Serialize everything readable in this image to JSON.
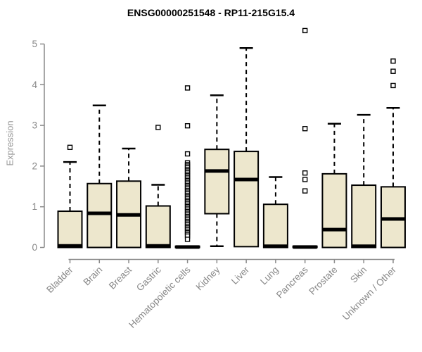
{
  "chart_data": {
    "type": "boxplot",
    "title": "ENSG00000251548 - RP11-215G15.4",
    "ylabel": "Expression",
    "xlabel": "",
    "ylim": [
      0,
      5.4
    ],
    "yticks": [
      0,
      1,
      2,
      3,
      4,
      5
    ],
    "grid": false,
    "legend": "none",
    "categories": [
      "Bladder",
      "Brain",
      "Breast",
      "Gastric",
      "Hematopoietic cells",
      "Kidney",
      "Liver",
      "Lung",
      "Pancreas",
      "Prostate",
      "Skin",
      "Unknown / Other"
    ],
    "boxes": [
      {
        "category": "Bladder",
        "q1": 0,
        "median": 0.04,
        "q3": 0.89,
        "whisker_low": null,
        "whisker_high": 2.1,
        "outliers": [
          2.46
        ]
      },
      {
        "category": "Brain",
        "q1": 0,
        "median": 0.84,
        "q3": 1.57,
        "whisker_low": null,
        "whisker_high": 3.49,
        "outliers": []
      },
      {
        "category": "Breast",
        "q1": 0,
        "median": 0.8,
        "q3": 1.63,
        "whisker_low": null,
        "whisker_high": 2.43,
        "outliers": []
      },
      {
        "category": "Gastric",
        "q1": 0,
        "median": 0.04,
        "q3": 1.02,
        "whisker_low": null,
        "whisker_high": 1.54,
        "outliers": [
          2.95
        ]
      },
      {
        "category": "Hematopoietic cells",
        "q1": 0,
        "median": 0.01,
        "q3": 0.03,
        "whisker_low": null,
        "whisker_high": null,
        "outliers": [
          3.92,
          2.99,
          2.3,
          2.08,
          2.04,
          2.0,
          1.96,
          1.92,
          1.88,
          1.84,
          1.8,
          1.76,
          1.72,
          1.68,
          1.64,
          1.6,
          1.56,
          1.52,
          1.48,
          1.44,
          1.4,
          1.36,
          1.32,
          1.28,
          1.24,
          1.2,
          1.16,
          1.12,
          1.08,
          1.04,
          1.0,
          0.96,
          0.92,
          0.88,
          0.84,
          0.8,
          0.76,
          0.72,
          0.68,
          0.64,
          0.6,
          0.56,
          0.52,
          0.48,
          0.44,
          0.4,
          0.36,
          0.32,
          0.28,
          0.2
        ]
      },
      {
        "category": "Kidney",
        "q1": 0.83,
        "median": 1.88,
        "q3": 2.41,
        "whisker_low": 0.03,
        "whisker_high": 3.74,
        "outliers": []
      },
      {
        "category": "Liver",
        "q1": 0.02,
        "median": 1.67,
        "q3": 2.36,
        "whisker_low": null,
        "whisker_high": 4.9,
        "outliers": []
      },
      {
        "category": "Lung",
        "q1": 0,
        "median": 0.03,
        "q3": 1.06,
        "whisker_low": null,
        "whisker_high": 1.73,
        "outliers": []
      },
      {
        "category": "Pancreas",
        "q1": 0,
        "median": 0.01,
        "q3": 0.03,
        "whisker_low": null,
        "whisker_high": null,
        "outliers": [
          5.33,
          2.92,
          1.83,
          1.67,
          1.39
        ]
      },
      {
        "category": "Prostate",
        "q1": 0,
        "median": 0.44,
        "q3": 1.81,
        "whisker_low": null,
        "whisker_high": 3.04,
        "outliers": []
      },
      {
        "category": "Skin",
        "q1": 0,
        "median": 0.03,
        "q3": 1.53,
        "whisker_low": null,
        "whisker_high": 3.26,
        "outliers": []
      },
      {
        "category": "Unknown / Other",
        "q1": 0,
        "median": 0.7,
        "q3": 1.49,
        "whisker_low": null,
        "whisker_high": 3.43,
        "outliers": [
          4.58,
          4.33,
          3.98
        ]
      }
    ],
    "colors": {
      "box_fill": "#ede7cd",
      "box_border": "#000000",
      "median": "#000000",
      "whisker": "#000000",
      "outlier_stroke": "#000000",
      "outlier_fill": "#ffffff",
      "axis": "#8a8a8a",
      "tick_label": "#878787",
      "title": "#000000",
      "background": "#ffffff"
    }
  }
}
